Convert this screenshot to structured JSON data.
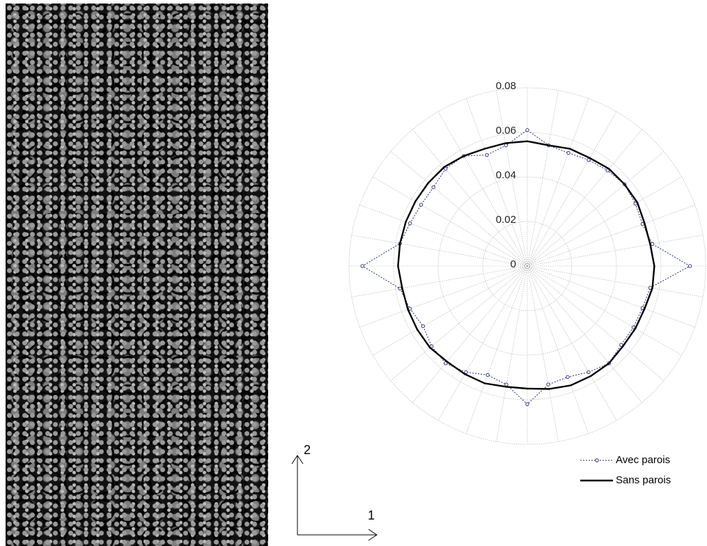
{
  "chart_data": {
    "type": "polar",
    "theta": [
      0,
      10,
      20,
      30,
      40,
      50,
      60,
      70,
      80,
      90,
      100,
      110,
      120,
      130,
      140,
      150,
      160,
      170,
      180,
      190,
      200,
      210,
      220,
      230,
      240,
      250,
      260,
      270,
      280,
      290,
      300,
      310,
      320,
      330,
      340,
      350
    ],
    "rlim": [
      0,
      0.08
    ],
    "rticks": [
      0,
      0.02,
      0.04,
      0.06,
      0.08
    ],
    "grid": true,
    "series": [
      {
        "name": "Avec parois",
        "color": "#1f2a7a",
        "style": "dotted",
        "markers": true,
        "values": [
          0.073,
          0.057,
          0.055,
          0.056,
          0.057,
          0.056,
          0.055,
          0.054,
          0.055,
          0.061,
          0.055,
          0.053,
          0.057,
          0.057,
          0.055,
          0.055,
          0.056,
          0.058,
          0.074,
          0.058,
          0.056,
          0.054,
          0.056,
          0.057,
          0.055,
          0.052,
          0.054,
          0.062,
          0.054,
          0.053,
          0.055,
          0.057,
          0.055,
          0.055,
          0.055,
          0.056
        ]
      },
      {
        "name": "Sans parois",
        "color": "#000000",
        "style": "solid",
        "markers": false,
        "values": [
          0.057,
          0.056,
          0.056,
          0.057,
          0.057,
          0.057,
          0.056,
          0.056,
          0.055,
          0.056,
          0.056,
          0.056,
          0.057,
          0.058,
          0.058,
          0.058,
          0.058,
          0.058,
          0.058,
          0.057,
          0.057,
          0.057,
          0.057,
          0.056,
          0.056,
          0.056,
          0.055,
          0.055,
          0.056,
          0.057,
          0.057,
          0.057,
          0.056,
          0.056,
          0.056,
          0.057
        ]
      }
    ]
  },
  "axes_arrows": {
    "horizontal_label": "1",
    "vertical_label": "2"
  }
}
